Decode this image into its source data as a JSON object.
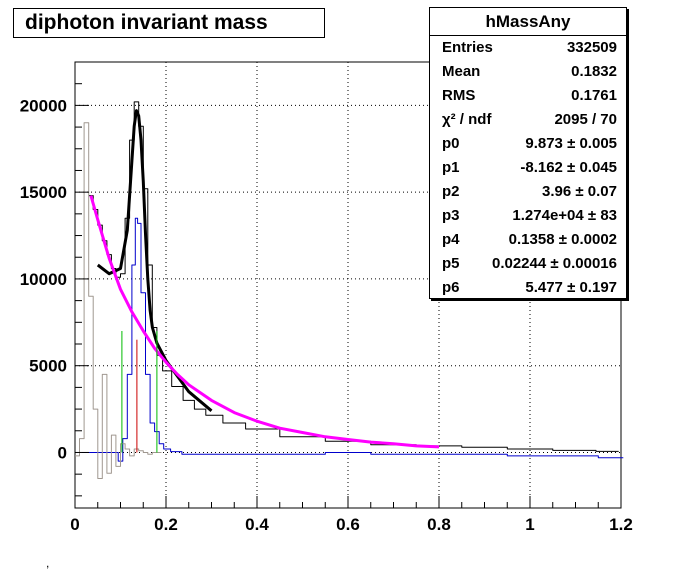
{
  "title": "diphoton invariant mass",
  "stats": {
    "name": "hMassAny",
    "rows": [
      {
        "label": "Entries",
        "value": "332509"
      },
      {
        "label": "Mean",
        "value": "0.1832"
      },
      {
        "label": "RMS",
        "value": "0.1761"
      },
      {
        "label": "χ² / ndf",
        "value": "2095 / 70"
      },
      {
        "label": "p0",
        "value": "9.873 ± 0.005"
      },
      {
        "label": "p1",
        "value": "-8.162 ± 0.045"
      },
      {
        "label": "p2",
        "value": "3.96 ± 0.07"
      },
      {
        "label": "p3",
        "value": "1.274e+04 ± 83"
      },
      {
        "label": "p4",
        "value": "0.1358 ± 0.0002"
      },
      {
        "label": "p5",
        "value": "0.02244 ± 0.00016"
      },
      {
        "label": "p6",
        "value": "5.477 ± 0.197"
      }
    ]
  },
  "chart_data": {
    "type": "line",
    "title": "diphoton invariant mass",
    "xlim": [
      0,
      1.2
    ],
    "ylim": [
      -3200,
      22500
    ],
    "xticks": [
      0,
      0.2,
      0.4,
      0.6,
      0.8,
      1,
      1.2
    ],
    "xtick_labels": [
      "0",
      "0.2",
      "0.4",
      "0.6",
      "0.8",
      "1",
      "1.2"
    ],
    "yticks": [
      0,
      5000,
      10000,
      15000,
      20000
    ],
    "ytick_labels": [
      "0",
      "5000",
      "10000",
      "15000",
      "20000"
    ],
    "grid": true,
    "legend": "top-right stats box",
    "colors": {
      "total": "#000000",
      "signal_sub": "#0000cc",
      "low_mass": "#a09890",
      "fit": "#000000",
      "background": "#ff00ff",
      "window_low": "#00bb00",
      "peak": "#cc0000",
      "window_high": "#00bb00"
    },
    "series": [
      {
        "x": [
          0.035,
          0.045,
          0.055,
          0.065,
          0.075,
          0.085,
          0.095,
          0.105,
          0.115,
          0.125,
          0.135,
          0.145,
          0.155,
          0.165,
          0.175,
          0.185,
          0.2,
          0.225,
          0.25,
          0.275,
          0.3,
          0.35,
          0.4,
          0.5,
          0.6,
          0.7,
          0.8,
          0.9,
          1.0,
          1.1,
          1.19
        ],
        "y": [
          14800,
          14000,
          13100,
          12200,
          11400,
          10600,
          10100,
          10300,
          13500,
          18000,
          20200,
          18800,
          15200,
          10800,
          7200,
          5600,
          4700,
          3800,
          3000,
          2500,
          2150,
          1700,
          1350,
          900,
          650,
          450,
          380,
          300,
          200,
          120,
          60
        ]
      },
      {
        "x": [
          0.02,
          0.03,
          0.04,
          0.05,
          0.06,
          0.07,
          0.08,
          0.09,
          0.1,
          0.11,
          0.12,
          0.13,
          0.135,
          0.14,
          0.15,
          0.16,
          0.17,
          0.18,
          0.19,
          0.2,
          0.22,
          0.25,
          0.3,
          0.4,
          0.5,
          0.6,
          0.7,
          0.8,
          0.9,
          1.0,
          1.1,
          1.2
        ],
        "y": [
          0,
          0,
          0,
          0,
          0,
          0,
          0,
          0,
          -500,
          800,
          4500,
          10800,
          13500,
          13200,
          9200,
          4500,
          1700,
          1200,
          500,
          200,
          50,
          -100,
          -100,
          -100,
          -100,
          0,
          -100,
          -100,
          -100,
          -200,
          -200,
          -300
        ]
      },
      {
        "x": [
          0.005,
          0.015,
          0.025,
          0.035,
          0.045,
          0.055,
          0.065,
          0.075,
          0.085,
          0.095,
          0.105,
          0.115,
          0.125,
          0.135,
          0.145,
          0.155,
          0.165,
          0.175,
          0.185
        ],
        "y": [
          -200,
          800,
          19000,
          9000,
          2500,
          -1500,
          4500,
          -1200,
          1000,
          -800,
          500,
          200,
          -200,
          200,
          100,
          0,
          -100,
          0,
          0
        ]
      },
      {
        "x": [
          0.05,
          0.075,
          0.1,
          0.115,
          0.125,
          0.13,
          0.135,
          0.14,
          0.145,
          0.15,
          0.155,
          0.16,
          0.165,
          0.17,
          0.18,
          0.2,
          0.25,
          0.3
        ],
        "y": [
          10800,
          10300,
          10600,
          12800,
          16800,
          18800,
          19700,
          19400,
          18000,
          15600,
          12600,
          10000,
          8200,
          7200,
          6300,
          5300,
          3500,
          2400
        ]
      },
      {
        "x": [
          0.035,
          0.05,
          0.075,
          0.1,
          0.125,
          0.15,
          0.175,
          0.2,
          0.225,
          0.25,
          0.3,
          0.35,
          0.4,
          0.45,
          0.5,
          0.55,
          0.6,
          0.65,
          0.7,
          0.75,
          0.8
        ],
        "y": [
          14800,
          13400,
          11200,
          9400,
          8100,
          7000,
          6000,
          5200,
          4500,
          3900,
          3000,
          2300,
          1800,
          1400,
          1150,
          900,
          750,
          600,
          500,
          380,
          320
        ]
      },
      {
        "x": [
          0.103,
          0.103
        ],
        "y": [
          0,
          7000
        ]
      },
      {
        "x": [
          0.136,
          0.136
        ],
        "y": [
          0,
          6500
        ]
      },
      {
        "x": [
          0.18,
          0.18
        ],
        "y": [
          0,
          7000
        ]
      }
    ]
  },
  "footer_mark": ","
}
